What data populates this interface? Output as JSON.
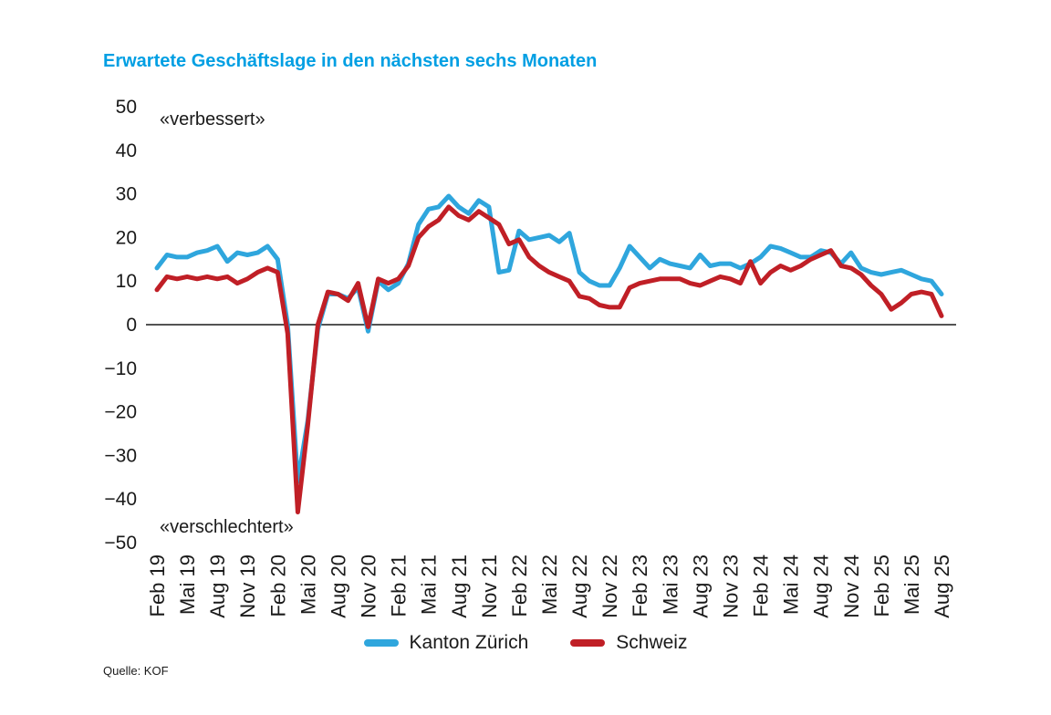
{
  "title": "Erwartete Geschäftslage in den nächsten sechs Monaten",
  "source": "Quelle: KOF",
  "annotation_top": "«verbessert»",
  "annotation_bottom": "«verschlechtert»",
  "legend": {
    "items": [
      {
        "label": "Kanton Zürich",
        "color": "#2fa6dd"
      },
      {
        "label": "Schweiz",
        "color": "#c01f26"
      }
    ]
  },
  "chart_data": {
    "type": "line",
    "title": "Erwartete Geschäftslage in den nächsten sechs Monaten",
    "x_interval": "monthly",
    "x_range": [
      "Feb 19",
      "Aug 25"
    ],
    "x_tick_every_n_months": 3,
    "x_tick_labels": [
      "Feb 19",
      "Mai 19",
      "Aug 19",
      "Nov 19",
      "Feb 20",
      "Mai 20",
      "Aug 20",
      "Nov 20",
      "Feb 21",
      "Mai 21",
      "Aug 21",
      "Nov 21",
      "Feb 22",
      "Mai 22",
      "Aug 22",
      "Nov 22",
      "Feb 23",
      "Mai 23",
      "Aug 23",
      "Nov 23",
      "Feb 24",
      "Mai 24",
      "Aug 24",
      "Nov 24",
      "Feb 25",
      "Mai 25",
      "Aug 25"
    ],
    "ylim": [
      -50,
      50
    ],
    "y_ticks": [
      50,
      40,
      30,
      20,
      10,
      0,
      -10,
      -20,
      -30,
      -40,
      -50
    ],
    "grid": "zero-line-only",
    "legend_position": "bottom-center",
    "series": [
      {
        "name": "Kanton Zürich",
        "color": "#2fa6dd",
        "values": [
          13,
          16,
          15.5,
          15.5,
          16.5,
          17,
          18,
          14.5,
          16.5,
          16,
          16.5,
          18,
          15,
          0,
          -36,
          -22,
          -1,
          7,
          7,
          6,
          8.5,
          -1.5,
          10,
          8,
          9.5,
          14,
          23,
          26.5,
          27,
          29.5,
          27,
          25.5,
          28.5,
          27,
          12,
          12.5,
          21.5,
          19.5,
          20,
          20.5,
          19,
          21,
          12,
          10,
          9,
          9,
          13,
          18,
          15.5,
          13,
          15,
          14,
          13.5,
          13,
          16,
          13.5,
          14,
          14,
          13,
          14,
          15.5,
          18,
          17.5,
          16.5,
          15.5,
          15.5,
          17,
          16.5,
          14,
          16.5,
          13,
          12,
          11.5,
          12,
          12.5,
          11.5,
          10.5,
          10,
          7
        ]
      },
      {
        "name": "Schweiz",
        "color": "#c01f26",
        "values": [
          8,
          11,
          10.5,
          11,
          10.5,
          11,
          10.5,
          11,
          9.5,
          10.5,
          12,
          13,
          12,
          -2,
          -43,
          -23,
          0,
          7.5,
          7,
          5.5,
          9.5,
          -0.5,
          10.5,
          9.5,
          10.5,
          13.5,
          20,
          22.5,
          24,
          27,
          25,
          24,
          26,
          24.5,
          23,
          18.5,
          19.5,
          15.5,
          13.5,
          12,
          11,
          10,
          6.5,
          6,
          4.5,
          4,
          4,
          8.5,
          9.5,
          10,
          10.5,
          10.5,
          10.5,
          9.5,
          9,
          10,
          11,
          10.5,
          9.5,
          14.5,
          9.5,
          12,
          13.5,
          12.5,
          13.5,
          15,
          16,
          17,
          13.5,
          13,
          11.5,
          9,
          7,
          3.5,
          5,
          7,
          7.5,
          7,
          2
        ]
      }
    ]
  }
}
